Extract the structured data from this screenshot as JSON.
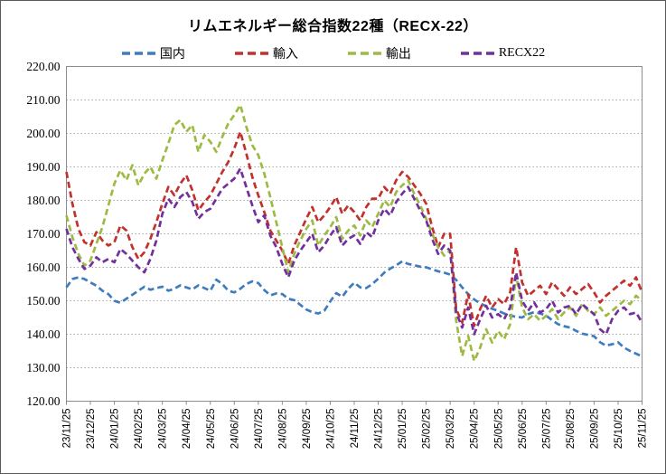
{
  "chart_data": {
    "type": "line",
    "title": "リムエネルギー総合指数22種（RECX-22）",
    "xlabel": "",
    "ylabel": "",
    "ylim": [
      120,
      220
    ],
    "y_ticks": [
      220,
      210,
      200,
      190,
      180,
      170,
      160,
      150,
      140,
      130,
      120
    ],
    "y_tick_labels": [
      "220.00",
      "210.00",
      "200.00",
      "190.00",
      "180.00",
      "170.00",
      "160.00",
      "150.00",
      "140.00",
      "130.00",
      "120.00"
    ],
    "x_tick_labels": [
      "23/11/25",
      "23/12/25",
      "24/01/25",
      "24/02/25",
      "24/03/25",
      "24/04/25",
      "24/05/25",
      "24/06/25",
      "24/07/25",
      "24/08/25",
      "24/09/25",
      "24/10/25",
      "24/11/25",
      "24/12/25",
      "25/01/25",
      "25/02/25",
      "25/03/25",
      "25/04/25",
      "25/05/25",
      "25/06/25",
      "25/07/25",
      "25/08/25",
      "25/09/25",
      "25/10/25",
      "25/11/25"
    ],
    "grid": "horizontal-dotted",
    "legend_position": "top",
    "points_per_month": 4,
    "series": [
      {
        "name": "国内",
        "id": "domestic",
        "color": "#3E7CBE",
        "style": "dashed",
        "values": [
          154.0,
          156.5,
          157.0,
          156.5,
          155.5,
          154.5,
          153.0,
          152.0,
          150.0,
          149.4,
          150.6,
          151.8,
          153.0,
          154.2,
          153.3,
          153.8,
          154.2,
          153.0,
          153.6,
          154.6,
          154.0,
          153.4,
          154.6,
          153.8,
          153.0,
          156.3,
          155.0,
          153.0,
          152.5,
          153.6,
          155.0,
          155.8,
          155.3,
          153.2,
          151.6,
          152.2,
          152.0,
          150.6,
          150.2,
          148.8,
          147.4,
          146.6,
          146.2,
          147.0,
          149.8,
          152.3,
          151.2,
          153.6,
          155.4,
          154.0,
          153.8,
          155.0,
          156.6,
          158.4,
          159.6,
          160.6,
          161.8,
          161.0,
          160.6,
          160.2,
          160.0,
          159.4,
          158.8,
          158.4,
          157.8,
          156.2,
          154.0,
          152.0,
          150.4,
          149.2,
          148.4,
          147.6,
          147.0,
          146.2,
          145.6,
          145.2,
          145.0,
          146.0,
          146.6,
          146.2,
          145.6,
          144.2,
          143.0,
          142.4,
          142.0,
          141.0,
          140.2,
          139.8,
          139.4,
          137.6,
          136.6,
          137.0,
          137.6,
          136.0,
          135.0,
          134.2,
          133.4
        ]
      },
      {
        "name": "輸入",
        "id": "import",
        "color": "#C2312D",
        "style": "dashed",
        "values": [
          188.5,
          179.0,
          171.5,
          167.5,
          166.5,
          170.5,
          168.0,
          166.5,
          167.5,
          172.5,
          171.0,
          166.0,
          162.5,
          164.5,
          168.5,
          173.5,
          179.0,
          184.0,
          181.5,
          185.0,
          187.5,
          183.0,
          177.0,
          179.5,
          181.5,
          185.0,
          188.5,
          191.5,
          195.5,
          200.5,
          194.0,
          187.0,
          181.5,
          176.5,
          171.0,
          168.0,
          165.0,
          161.0,
          166.5,
          170.5,
          174.5,
          178.0,
          173.5,
          175.5,
          178.0,
          181.0,
          176.0,
          178.5,
          176.5,
          174.0,
          178.0,
          180.5,
          180.5,
          184.0,
          182.0,
          186.0,
          188.5,
          187.0,
          184.5,
          182.0,
          179.0,
          172.0,
          166.0,
          170.0,
          170.0,
          147.5,
          143.5,
          152.0,
          142.5,
          147.5,
          151.5,
          148.0,
          150.5,
          149.0,
          152.5,
          166.0,
          155.5,
          151.5,
          153.0,
          154.5,
          152.0,
          155.5,
          153.5,
          151.5,
          154.0,
          152.0,
          153.5,
          155.0,
          152.5,
          149.5,
          151.5,
          153.0,
          154.5,
          156.0,
          154.5,
          157.0,
          152.5
        ]
      },
      {
        "name": "輸出",
        "id": "export",
        "color": "#9DBB44",
        "style": "dashed",
        "values": [
          175.5,
          169.0,
          164.0,
          160.5,
          162.0,
          167.0,
          172.0,
          178.5,
          185.0,
          189.0,
          186.0,
          190.5,
          184.5,
          188.0,
          190.0,
          186.5,
          192.0,
          197.0,
          202.5,
          204.0,
          200.5,
          202.5,
          194.5,
          199.5,
          197.5,
          194.5,
          199.0,
          203.0,
          205.5,
          208.5,
          202.0,
          196.5,
          193.5,
          188.0,
          181.0,
          173.5,
          166.0,
          158.5,
          164.0,
          168.0,
          171.5,
          174.0,
          166.5,
          169.5,
          172.0,
          175.0,
          168.5,
          171.0,
          172.5,
          169.5,
          174.0,
          172.0,
          176.0,
          180.0,
          178.0,
          182.5,
          184.5,
          186.0,
          182.0,
          178.5,
          174.5,
          170.0,
          166.0,
          163.5,
          165.0,
          144.0,
          133.5,
          139.5,
          132.0,
          136.0,
          141.5,
          137.5,
          141.0,
          138.5,
          143.0,
          157.5,
          148.0,
          144.5,
          146.0,
          144.0,
          145.5,
          147.5,
          144.5,
          146.5,
          148.0,
          145.5,
          149.0,
          147.0,
          146.0,
          148.0,
          145.5,
          147.0,
          148.5,
          150.0,
          149.0,
          151.5,
          150.0
        ]
      },
      {
        "name": "RECX22",
        "id": "recx22",
        "color": "#71309B",
        "style": "dashed",
        "values": [
          171.5,
          166.0,
          162.5,
          159.5,
          160.5,
          163.0,
          161.5,
          162.5,
          161.5,
          165.5,
          164.0,
          162.0,
          160.0,
          158.5,
          162.5,
          168.0,
          176.0,
          180.5,
          178.0,
          181.0,
          182.5,
          179.5,
          174.5,
          176.5,
          177.5,
          180.5,
          183.5,
          185.0,
          186.5,
          189.5,
          184.0,
          178.5,
          173.5,
          175.5,
          169.5,
          166.0,
          161.0,
          157.0,
          162.0,
          165.0,
          167.5,
          170.0,
          164.5,
          166.5,
          169.5,
          172.0,
          166.5,
          168.5,
          169.5,
          167.0,
          170.5,
          169.0,
          174.0,
          177.5,
          175.5,
          179.5,
          182.0,
          184.0,
          180.5,
          177.0,
          174.0,
          168.5,
          164.0,
          166.5,
          165.0,
          146.5,
          142.0,
          148.0,
          140.0,
          144.5,
          148.5,
          145.0,
          146.0,
          144.5,
          148.0,
          158.5,
          150.0,
          147.0,
          149.5,
          146.5,
          147.5,
          150.0,
          146.5,
          148.0,
          148.5,
          146.0,
          149.0,
          147.5,
          146.0,
          141.5,
          140.0,
          144.5,
          147.0,
          148.0,
          146.0,
          146.5,
          143.5
        ]
      }
    ]
  },
  "style": {
    "grid_color": "#a6a6a6",
    "frame_color": "#8c8c8c",
    "text_color": "#000000"
  }
}
